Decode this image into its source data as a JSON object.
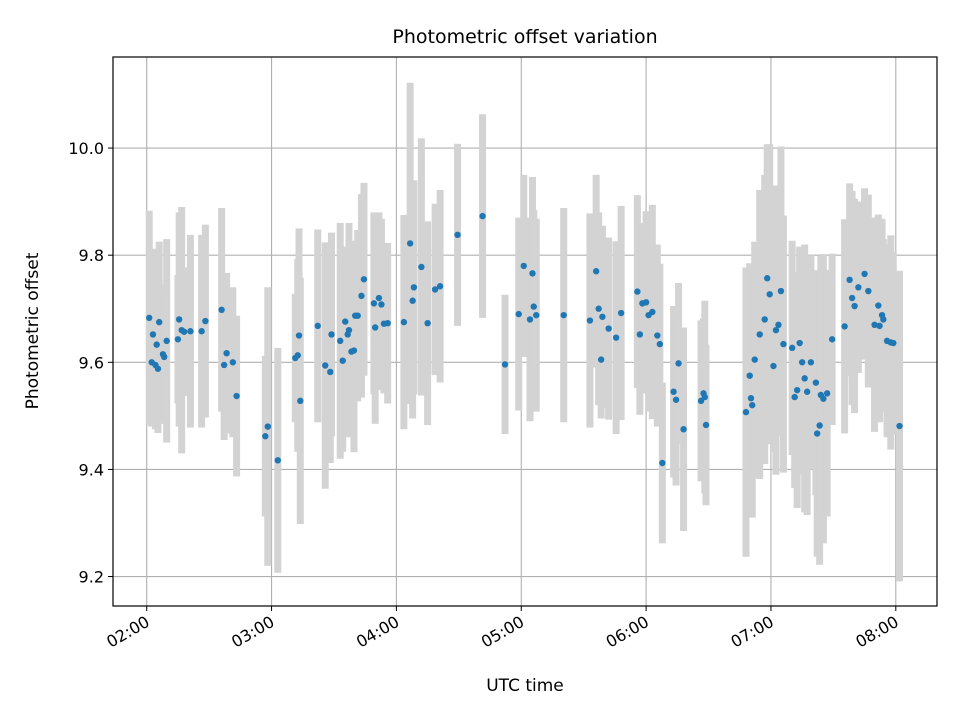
{
  "chart_data": {
    "type": "scatter",
    "title": "Photometric offset variation",
    "xlabel": "UTC time",
    "ylabel": "Photometric offset",
    "x_unit": "UTC hours",
    "xlim": [
      1.73,
      8.33
    ],
    "ylim": [
      9.145,
      10.17
    ],
    "grid": true,
    "x_ticks": [
      {
        "value": 2,
        "label": "02:00"
      },
      {
        "value": 3,
        "label": "03:00"
      },
      {
        "value": 4,
        "label": "04:00"
      },
      {
        "value": 5,
        "label": "05:00"
      },
      {
        "value": 6,
        "label": "06:00"
      },
      {
        "value": 7,
        "label": "07:00"
      },
      {
        "value": 8,
        "label": "08:00"
      }
    ],
    "y_ticks": [
      {
        "value": 9.2,
        "label": "9.2"
      },
      {
        "value": 9.4,
        "label": "9.4"
      },
      {
        "value": 9.6,
        "label": "9.6"
      },
      {
        "value": 9.8,
        "label": "9.8"
      },
      {
        "value": 10.0,
        "label": "10.0"
      }
    ],
    "colors": {
      "marker": "#1f77b4",
      "errorbar": "#d3d3d3",
      "grid": "#b0b0b0"
    },
    "series": [
      {
        "points": [
          [
            2.02,
            9.683,
            0.2
          ],
          [
            2.04,
            9.6,
            0.12
          ],
          [
            2.05,
            9.652,
            0.16
          ],
          [
            2.07,
            9.595,
            0.12
          ],
          [
            2.08,
            9.633,
            0.14
          ],
          [
            2.09,
            9.588,
            0.12
          ],
          [
            2.1,
            9.675,
            0.15
          ],
          [
            2.13,
            9.615,
            0.13
          ],
          [
            2.14,
            9.61,
            0.12
          ],
          [
            2.16,
            9.64,
            0.19
          ],
          [
            2.25,
            9.643,
            0.12
          ],
          [
            2.26,
            9.68,
            0.2
          ],
          [
            2.28,
            9.66,
            0.23
          ],
          [
            2.3,
            9.657,
            0.12
          ],
          [
            2.35,
            9.658,
            0.18
          ],
          [
            2.44,
            9.658,
            0.18
          ],
          [
            2.47,
            9.677,
            0.18
          ],
          [
            2.6,
            9.698,
            0.19
          ],
          [
            2.62,
            9.595,
            0.14
          ],
          [
            2.64,
            9.617,
            0.15
          ],
          [
            2.69,
            9.6,
            0.14
          ],
          [
            2.72,
            9.537,
            0.15
          ],
          [
            2.95,
            9.462,
            0.15
          ],
          [
            2.97,
            9.48,
            0.26
          ],
          [
            3.05,
            9.417,
            0.21
          ],
          [
            3.19,
            9.608,
            0.12
          ],
          [
            3.21,
            9.613,
            0.18
          ],
          [
            3.22,
            9.65,
            0.2
          ],
          [
            3.23,
            9.528,
            0.23
          ],
          [
            3.37,
            9.668,
            0.18
          ],
          [
            3.43,
            9.594,
            0.23
          ],
          [
            3.47,
            9.582,
            0.17
          ],
          [
            3.48,
            9.652,
            0.19
          ],
          [
            3.55,
            9.64,
            0.22
          ],
          [
            3.57,
            9.603,
            0.17
          ],
          [
            3.59,
            9.676,
            0.14
          ],
          [
            3.61,
            9.652,
            0.16
          ],
          [
            3.62,
            9.66,
            0.2
          ],
          [
            3.64,
            9.62,
            0.15
          ],
          [
            3.66,
            9.622,
            0.19
          ],
          [
            3.67,
            9.687,
            0.14
          ],
          [
            3.69,
            9.687,
            0.16
          ],
          [
            3.72,
            9.724,
            0.19
          ],
          [
            3.74,
            9.755,
            0.18
          ],
          [
            3.82,
            9.71,
            0.17
          ],
          [
            3.83,
            9.665,
            0.18
          ],
          [
            3.86,
            9.72,
            0.16
          ],
          [
            3.88,
            9.708,
            0.16
          ],
          [
            3.9,
            9.672,
            0.13
          ],
          [
            3.93,
            9.673,
            0.15
          ],
          [
            4.06,
            9.675,
            0.2
          ],
          [
            4.11,
            9.822,
            0.3
          ],
          [
            4.13,
            9.715,
            0.22
          ],
          [
            4.14,
            9.74,
            0.2
          ],
          [
            4.2,
            9.778,
            0.24
          ],
          [
            4.25,
            9.673,
            0.19
          ],
          [
            4.31,
            9.736,
            0.16
          ],
          [
            4.35,
            9.742,
            0.18
          ],
          [
            4.49,
            9.838,
            0.17
          ],
          [
            4.69,
            9.873,
            0.19
          ],
          [
            4.87,
            9.596,
            0.13
          ],
          [
            4.98,
            9.69,
            0.18
          ],
          [
            5.02,
            9.78,
            0.17
          ],
          [
            5.07,
            9.68,
            0.19
          ],
          [
            5.09,
            9.766,
            0.18
          ],
          [
            5.1,
            9.704,
            0.18
          ],
          [
            5.12,
            9.688,
            0.18
          ],
          [
            5.34,
            9.688,
            0.2
          ],
          [
            5.55,
            9.678,
            0.2
          ],
          [
            5.6,
            9.77,
            0.18
          ],
          [
            5.62,
            9.7,
            0.18
          ],
          [
            5.64,
            9.605,
            0.11
          ],
          [
            5.65,
            9.685,
            0.17
          ],
          [
            5.7,
            9.663,
            0.17
          ],
          [
            5.76,
            9.646,
            0.18
          ],
          [
            5.8,
            9.692,
            0.2
          ],
          [
            5.93,
            9.732,
            0.18
          ],
          [
            5.95,
            9.652,
            0.15
          ],
          [
            5.97,
            9.71,
            0.15
          ],
          [
            6.0,
            9.712,
            0.17
          ],
          [
            6.02,
            9.688,
            0.18
          ],
          [
            6.05,
            9.694,
            0.2
          ],
          [
            6.09,
            9.65,
            0.17
          ],
          [
            6.11,
            9.634,
            0.15
          ],
          [
            6.13,
            9.412,
            0.15
          ],
          [
            6.22,
            9.545,
            0.16
          ],
          [
            6.24,
            9.53,
            0.16
          ],
          [
            6.26,
            9.598,
            0.15
          ],
          [
            6.3,
            9.475,
            0.19
          ],
          [
            6.44,
            9.528,
            0.15
          ],
          [
            6.46,
            9.542,
            0.14
          ],
          [
            6.47,
            9.535,
            0.18
          ],
          [
            6.48,
            9.483,
            0.15
          ],
          [
            6.8,
            9.507,
            0.27
          ],
          [
            6.83,
            9.575,
            0.21
          ],
          [
            6.84,
            9.533,
            0.2
          ],
          [
            6.85,
            9.52,
            0.21
          ],
          [
            6.87,
            9.605,
            0.22
          ],
          [
            6.91,
            9.652,
            0.27
          ],
          [
            6.95,
            9.68,
            0.27
          ],
          [
            6.97,
            9.757,
            0.25
          ],
          [
            6.99,
            9.727,
            0.28
          ],
          [
            7.02,
            9.593,
            0.16
          ],
          [
            7.04,
            9.66,
            0.27
          ],
          [
            7.06,
            9.67,
            0.18
          ],
          [
            7.08,
            9.733,
            0.27
          ],
          [
            7.1,
            9.634,
            0.24
          ],
          [
            7.17,
            9.627,
            0.2
          ],
          [
            7.19,
            9.535,
            0.17
          ],
          [
            7.21,
            9.548,
            0.22
          ],
          [
            7.23,
            9.636,
            0.18
          ],
          [
            7.25,
            9.6,
            0.21
          ],
          [
            7.27,
            9.57,
            0.25
          ],
          [
            7.29,
            9.545,
            0.23
          ],
          [
            7.32,
            9.6,
            0.2
          ],
          [
            7.36,
            9.562,
            0.21
          ],
          [
            7.37,
            9.467,
            0.23
          ],
          [
            7.39,
            9.482,
            0.26
          ],
          [
            7.4,
            9.539,
            0.26
          ],
          [
            7.42,
            9.532,
            0.27
          ],
          [
            7.45,
            9.542,
            0.23
          ],
          [
            7.49,
            9.643,
            0.16
          ],
          [
            7.59,
            9.667,
            0.2
          ],
          [
            7.63,
            9.754,
            0.18
          ],
          [
            7.65,
            9.72,
            0.2
          ],
          [
            7.67,
            9.705,
            0.2
          ],
          [
            7.7,
            9.74,
            0.16
          ],
          [
            7.75,
            9.765,
            0.16
          ],
          [
            7.78,
            9.733,
            0.18
          ],
          [
            7.83,
            9.67,
            0.2
          ],
          [
            7.86,
            9.706,
            0.17
          ],
          [
            7.87,
            9.668,
            0.18
          ],
          [
            7.89,
            9.688,
            0.18
          ],
          [
            7.9,
            9.68,
            0.15
          ],
          [
            7.93,
            9.64,
            0.18
          ],
          [
            7.96,
            9.637,
            0.2
          ],
          [
            7.98,
            9.636,
            0.17
          ],
          [
            8.03,
            9.481,
            0.29
          ]
        ]
      }
    ]
  }
}
